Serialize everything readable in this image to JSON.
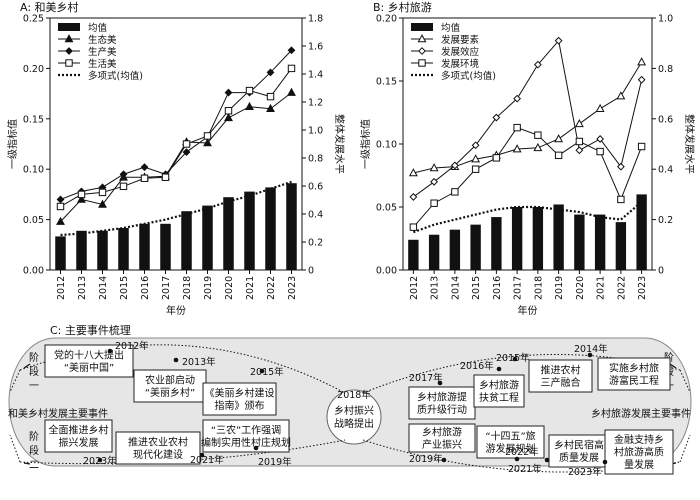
{
  "chart_data": [
    {
      "type": "bar",
      "panel_title": "A: 和美乡村",
      "categories": [
        "2012",
        "2013",
        "2014",
        "2015",
        "2016",
        "2017",
        "2018",
        "2019",
        "2020",
        "2021",
        "2022",
        "2023"
      ],
      "xlabel": "年份",
      "ylabel_left": "一级指标值",
      "ylabel_right": "整体发展水平",
      "ylim_left": [
        0,
        0.25
      ],
      "ylim_right": [
        0,
        1.8
      ],
      "yticks_left": [
        "0.00",
        "0.05",
        "0.10",
        "0.15",
        "0.20",
        "0.25"
      ],
      "yticks_right": [
        "0",
        "0.2",
        "0.4",
        "0.6",
        "0.8",
        "1.0",
        "1.2",
        "1.4",
        "1.6",
        "1.8"
      ],
      "legend_position": "top-left",
      "bar_series": {
        "name": "均值",
        "axis": "right",
        "values": [
          0.24,
          0.28,
          0.28,
          0.3,
          0.33,
          0.33,
          0.42,
          0.46,
          0.52,
          0.56,
          0.59,
          0.62
        ]
      },
      "series": [
        {
          "name": "生态美",
          "marker": "triangle-filled",
          "axis": "left",
          "values": [
            0.048,
            0.07,
            0.065,
            0.092,
            0.092,
            0.093,
            0.127,
            0.126,
            0.151,
            0.162,
            0.16,
            0.176
          ]
        },
        {
          "name": "生产美",
          "marker": "diamond-filled",
          "axis": "left",
          "values": [
            0.07,
            0.078,
            0.082,
            0.095,
            0.102,
            0.095,
            0.117,
            0.132,
            0.176,
            0.176,
            0.196,
            0.218
          ]
        },
        {
          "name": "生活美",
          "marker": "square-open",
          "axis": "left",
          "values": [
            0.063,
            0.075,
            0.077,
            0.083,
            0.091,
            0.092,
            0.125,
            0.133,
            0.158,
            0.178,
            0.172,
            0.2
          ]
        }
      ],
      "trend": {
        "name": "多项式(均值)",
        "axis": "right",
        "values": [
          0.25,
          0.26,
          0.28,
          0.3,
          0.33,
          0.36,
          0.4,
          0.44,
          0.49,
          0.53,
          0.58,
          0.63
        ]
      }
    },
    {
      "type": "bar",
      "panel_title": "B: 乡村旅游",
      "categories": [
        "2012",
        "2013",
        "2014",
        "2015",
        "2016",
        "2017",
        "2018",
        "2019",
        "2020",
        "2021",
        "2022",
        "2023"
      ],
      "xlabel": "年份",
      "ylabel_left": "一级指标值",
      "ylabel_right": "整体发展水平",
      "ylim_left": [
        0,
        0.2
      ],
      "ylim_right": [
        0,
        1.0
      ],
      "yticks_left": [
        "0.00",
        "0.05",
        "0.10",
        "0.15",
        "0.20"
      ],
      "yticks_right": [
        "0",
        "0.2",
        "0.4",
        "0.6",
        "0.8",
        "1.0"
      ],
      "legend_position": "top-left",
      "bar_series": {
        "name": "均值",
        "axis": "right",
        "values": [
          0.12,
          0.14,
          0.16,
          0.18,
          0.21,
          0.25,
          0.25,
          0.26,
          0.22,
          0.22,
          0.19,
          0.3
        ]
      },
      "series": [
        {
          "name": "发展要素",
          "marker": "triangle-open",
          "axis": "left",
          "values": [
            0.077,
            0.081,
            0.082,
            0.088,
            0.091,
            0.096,
            0.097,
            0.104,
            0.116,
            0.128,
            0.138,
            0.165
          ]
        },
        {
          "name": "发展效应",
          "marker": "diamond-open",
          "axis": "left",
          "values": [
            0.058,
            0.07,
            0.083,
            0.099,
            0.121,
            0.136,
            0.163,
            0.182,
            0.095,
            0.104,
            0.082,
            0.151
          ]
        },
        {
          "name": "发展环境",
          "marker": "square-open",
          "axis": "left",
          "values": [
            0.034,
            0.053,
            0.062,
            0.08,
            0.089,
            0.113,
            0.107,
            0.091,
            0.102,
            0.094,
            0.056,
            0.098
          ]
        }
      ],
      "trend": {
        "name": "多项式(均值)",
        "axis": "right",
        "values": [
          0.15,
          0.18,
          0.2,
          0.22,
          0.24,
          0.25,
          0.25,
          0.24,
          0.23,
          0.21,
          0.2,
          0.27
        ]
      }
    }
  ],
  "panel_c": {
    "title": "C: 主要事件梳理",
    "center_year": "2018年",
    "center_text": "乡村振兴\n战略提出",
    "left_main": "和美乡村发展主要事件",
    "right_main": "乡村旅游发展主要事件",
    "left_stage1": "阶\n段\n一",
    "left_stage2": "阶\n段\n二",
    "right_stage1": "阶\n段\n一",
    "right_stage2": "阶\n段\n二",
    "left_upper_years": [
      "2012年",
      "2013年",
      "2015年"
    ],
    "left_upper_events": [
      "党的十八大提出\n“美丽中国”",
      "农业部启动\n“美丽乡村”",
      "《美丽乡村建设\n指南》颁布"
    ],
    "left_lower_years": [
      "2023年",
      "2021年",
      "2019年"
    ],
    "left_lower_events": [
      "全面推进乡村\n振兴发展",
      "推进农业农村\n现代化建设",
      "“三农”工作强调\n编制实用性村庄规划"
    ],
    "right_upper_years": [
      "2017年",
      "2016年",
      "2015年",
      "2014年"
    ],
    "right_upper_events": [
      "乡村旅游提\n质升级行动",
      "乡村旅游\n扶贫工程",
      "推进农村\n三产融合",
      "实施乡村旅\n游富民工程"
    ],
    "right_lower_years": [
      "2019年",
      "2021年",
      "2022年",
      "2023年"
    ],
    "right_lower_events": [
      "乡村旅游\n产业振兴",
      "“十四五”旅\n游发展规划",
      "乡村民宿高\n质量发展",
      "金融支持乡\n村旅游高质\n量发展"
    ]
  }
}
